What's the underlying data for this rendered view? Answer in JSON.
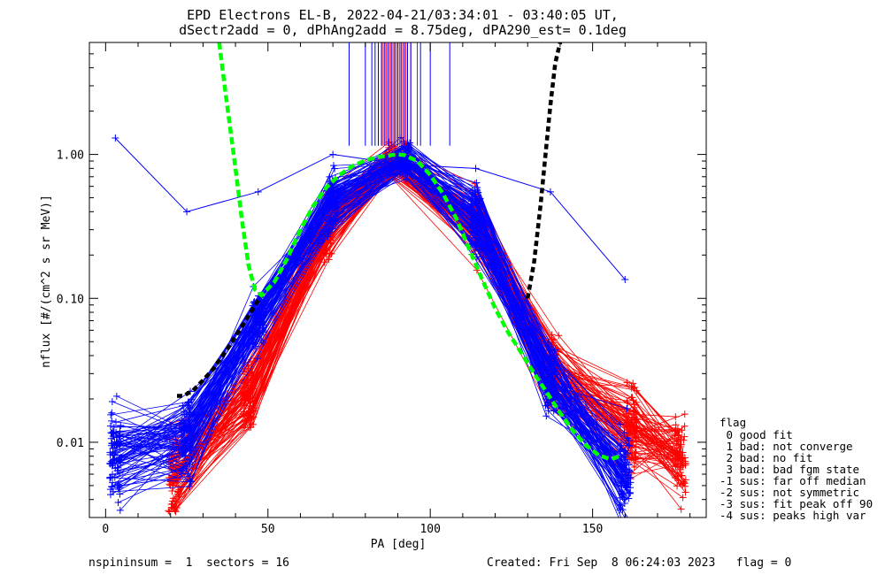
{
  "chart_data": {
    "type": "line",
    "title": "EPD Electrons EL-B, 2022-04-21/03:34:01 - 03:40:05 UT,",
    "subtitle": "dSectr2add = 0, dPhAng2add = 8.75deg, dPA290_est=   0.1deg",
    "xlabel": "PA [deg]",
    "ylabel": "nflux [#/(cm^2 s sr MeV)]",
    "xlim": [
      -5,
      185
    ],
    "ylim": [
      0.003,
      6
    ],
    "yscale": "log",
    "xticks": [
      0,
      50,
      100,
      150
    ],
    "yticks": [
      {
        "value": 0.01,
        "label": "0.01"
      },
      {
        "value": 0.1,
        "label": "0.10"
      },
      {
        "value": 1,
        "label": "1.00"
      }
    ],
    "grid": false,
    "legend_title": "flag",
    "legend": [
      " 0 good fit",
      " 1 bad: not converge",
      " 2 bad: no fit",
      " 3 bad: bad fgm state",
      "-1 sus: far off median",
      "-2 sus: not symmetric",
      "-3 sus: fit peak off 90",
      "-4 sus: peaks high var"
    ],
    "footer_left": "nspininsum =  1  sectors = 16",
    "footer_right": "Created: Fri Sep  8 06:24:03 2023   flag = 0",
    "colors": {
      "up": "#ff0000",
      "down": "#0000ff",
      "fit": "#00ff00",
      "loss_cone": "#000000"
    },
    "template_up": {
      "pa": [
        21,
        44,
        68,
        88,
        115,
        138,
        162,
        177
      ],
      "flux": [
        0.006,
        0.022,
        0.3,
        0.9,
        0.32,
        0.03,
        0.012,
        0.008
      ]
    },
    "template_down": {
      "pa": [
        3,
        25,
        47,
        70,
        92,
        114,
        137,
        160
      ],
      "flux": [
        0.008,
        0.011,
        0.07,
        0.45,
        0.92,
        0.34,
        0.028,
        0.006
      ]
    },
    "outlier_series": {
      "pa": [
        3,
        25,
        47,
        70,
        92,
        114,
        137,
        160
      ],
      "flux": [
        1.3,
        0.4,
        0.55,
        1.0,
        0.85,
        0.8,
        0.55,
        0.135
      ]
    },
    "fit_curve": {
      "pa": [
        35,
        37,
        40,
        42,
        44,
        46,
        48,
        52,
        56,
        60,
        64,
        68,
        72,
        76,
        80,
        84,
        88,
        90,
        92,
        96,
        100,
        104,
        108,
        112,
        116,
        120,
        124,
        128,
        132,
        136,
        140,
        144,
        148,
        152,
        155,
        157,
        159
      ],
      "flux": [
        6.0,
        2.6,
        0.8,
        0.35,
        0.17,
        0.115,
        0.105,
        0.13,
        0.19,
        0.3,
        0.44,
        0.59,
        0.72,
        0.83,
        0.91,
        0.96,
        0.99,
        1.0,
        0.99,
        0.9,
        0.72,
        0.53,
        0.36,
        0.22,
        0.135,
        0.085,
        0.058,
        0.042,
        0.03,
        0.022,
        0.016,
        0.012,
        0.0095,
        0.0081,
        0.0077,
        0.0078,
        0.0082
      ]
    },
    "loss_cone_left": {
      "pa": [
        22,
        24,
        27,
        30,
        33,
        36,
        39,
        42,
        45,
        48
      ],
      "flux": [
        0.021,
        0.021,
        0.023,
        0.027,
        0.032,
        0.04,
        0.05,
        0.064,
        0.082,
        0.105
      ]
    },
    "loss_cone_right": {
      "pa": [
        130,
        132,
        134,
        135.5,
        137,
        138.5,
        140
      ],
      "flux": [
        0.1,
        0.18,
        0.45,
        1.0,
        2.2,
        4.3,
        6.0
      ]
    },
    "peak_lines_up": [
      84,
      85,
      85.5,
      86,
      86.5,
      87,
      87.5,
      88,
      88.5,
      89,
      89.5,
      90,
      90.5,
      91,
      91.5,
      92,
      92.5,
      93,
      94,
      96
    ],
    "peak_lines_down": [
      75,
      80,
      82,
      83,
      84,
      85,
      86,
      87,
      88,
      89,
      90,
      91,
      92,
      93,
      94,
      97,
      100,
      106
    ]
  }
}
